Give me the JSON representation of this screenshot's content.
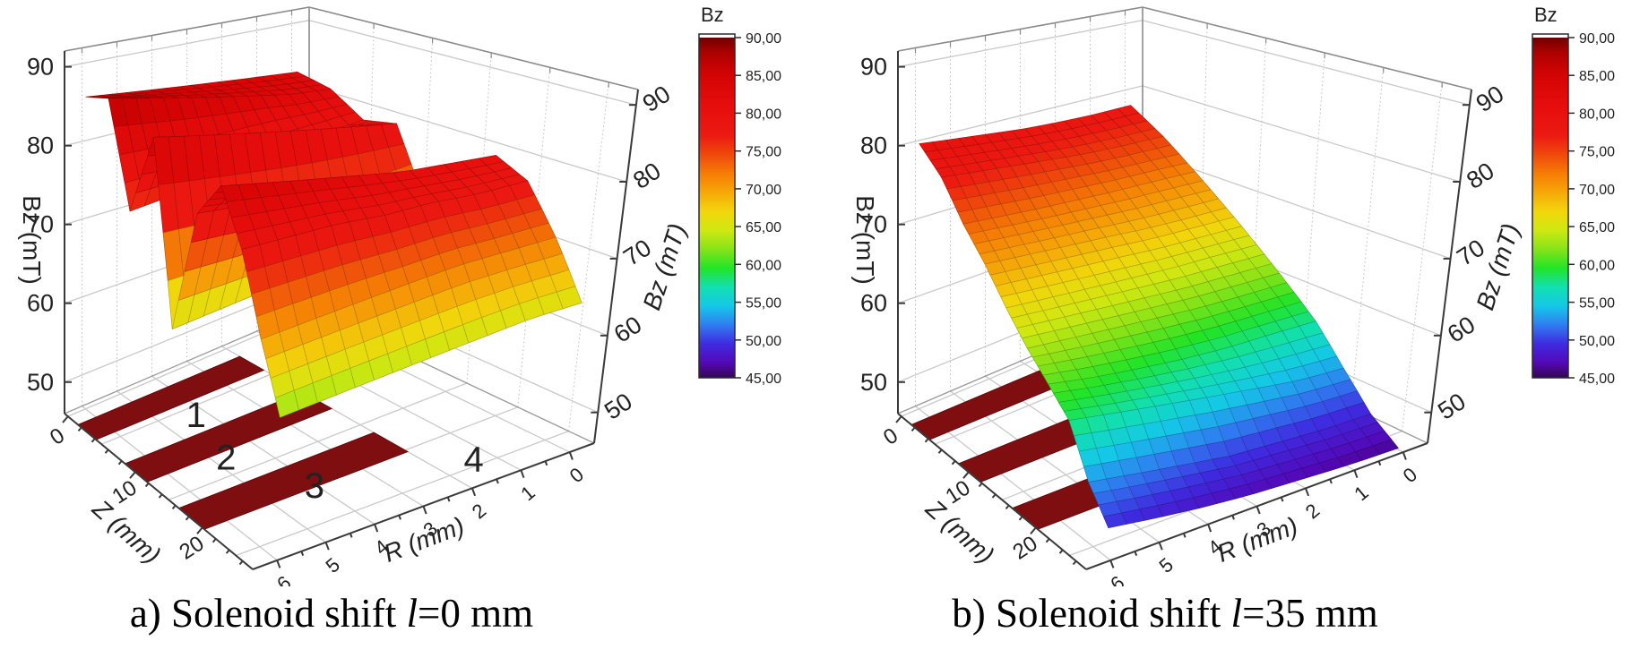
{
  "chart_data": [
    {
      "type": "surface",
      "panel": "a",
      "caption": {
        "prefix": "a) Solenoid shift ",
        "italic_var": "l",
        "suffix": "=0 mm"
      },
      "axes": {
        "z_label": "Z (mm)",
        "r_label": "R (mm)",
        "b_label_left": "Bz (mT)",
        "b_label_right": "Bz (mT)",
        "z_ticks": [
          0,
          10,
          20
        ],
        "r_ticks": [
          0,
          1,
          2,
          3,
          4,
          5,
          6
        ],
        "b_ticks": [
          50,
          60,
          70,
          80,
          90
        ],
        "z_range": [
          -0.5,
          27.5
        ],
        "r_range": [
          -0.5,
          6.5
        ],
        "b_range": [
          46,
          92
        ]
      },
      "colorbar": {
        "title": "Bz",
        "tick_labels": [
          "90,00",
          "85,00",
          "80,00",
          "75,00",
          "70,00",
          "65,00",
          "60,00",
          "55,00",
          "50,00",
          "45,00"
        ],
        "values": [
          90,
          85,
          80,
          75,
          70,
          65,
          60,
          55,
          50,
          45
        ]
      },
      "surface_grid": {
        "z": [
          0,
          3,
          6,
          9,
          12,
          15,
          18,
          21,
          24,
          27
        ],
        "r": [
          0,
          1,
          2,
          3,
          4,
          5,
          6
        ],
        "bz_values_by_r": [
          [
            83.0,
            82.0,
            79.0,
            80.0,
            70.0,
            77.0,
            80.0,
            78.0,
            72.0,
            65.0
          ],
          [
            83.5,
            82.5,
            78.5,
            81.0,
            68.0,
            77.5,
            80.5,
            78.0,
            72.0,
            65.0
          ],
          [
            84.0,
            83.5,
            78.0,
            82.0,
            66.5,
            78.0,
            81.0,
            78.5,
            72.0,
            64.5
          ],
          [
            84.5,
            84.5,
            77.0,
            83.0,
            65.5,
            78.5,
            82.0,
            78.5,
            71.5,
            64.0
          ],
          [
            85.0,
            85.5,
            76.0,
            84.0,
            65.0,
            79.0,
            83.0,
            79.0,
            71.0,
            63.5
          ],
          [
            85.5,
            86.5,
            75.5,
            85.0,
            64.5,
            79.5,
            84.0,
            79.0,
            70.5,
            63.0
          ],
          [
            86.0,
            87.5,
            75.0,
            86.0,
            64.0,
            80.0,
            85.0,
            79.0,
            70.0,
            62.5
          ]
        ]
      },
      "coil_bars": [
        {
          "z": [
            1.5,
            4.2
          ],
          "r": [
            2.0,
            6.5
          ]
        },
        {
          "z": [
            8.5,
            11.8
          ],
          "r": [
            2.0,
            6.5
          ]
        },
        {
          "z": [
            16.5,
            20.3
          ],
          "r": [
            2.0,
            6.5
          ]
        }
      ],
      "floor_labels": [
        {
          "text": "1",
          "z": 6.5,
          "r": 4.3
        },
        {
          "text": "2",
          "z": 13.0,
          "r": 4.8
        },
        {
          "text": "3",
          "z": 20.5,
          "r": 4.1
        },
        {
          "text": "4",
          "z": 24.5,
          "r": 1.4
        }
      ]
    },
    {
      "type": "surface",
      "panel": "b",
      "caption": {
        "prefix": "b) Solenoid shift ",
        "italic_var": "l",
        "suffix": "=35 mm"
      },
      "axes": {
        "z_label": "Z (mm)",
        "r_label": "R (mm)",
        "b_label_left": "Bz (mT)",
        "b_label_right": "Bz (mT)",
        "z_ticks": [
          0,
          10,
          20
        ],
        "r_ticks": [
          0,
          1,
          2,
          3,
          4,
          5,
          6
        ],
        "b_ticks": [
          50,
          60,
          70,
          80,
          90
        ],
        "z_range": [
          -0.5,
          27.5
        ],
        "r_range": [
          -0.5,
          6.5
        ],
        "b_range": [
          46,
          92
        ]
      },
      "colorbar": {
        "title": "Bz",
        "tick_labels": [
          "90,00",
          "85,00",
          "80,00",
          "75,00",
          "70,00",
          "65,00",
          "60,00",
          "55,00",
          "50,00",
          "45,00"
        ],
        "values": [
          90,
          85,
          80,
          75,
          70,
          65,
          60,
          55,
          50,
          45
        ]
      },
      "surface_grid": {
        "z": [
          0,
          3,
          6,
          9,
          12,
          15,
          18,
          21,
          24,
          27
        ],
        "r": [
          0,
          1,
          2,
          3,
          4,
          5,
          6
        ],
        "bz_values_by_r": [
          [
            78.0,
            75.0,
            71.5,
            68.0,
            64.5,
            61.0,
            57.5,
            53.0,
            48.8,
            46.2
          ],
          [
            78.0,
            75.2,
            71.8,
            68.2,
            64.8,
            61.2,
            57.8,
            53.5,
            49.0,
            46.4
          ],
          [
            78.2,
            75.5,
            72.0,
            68.5,
            65.0,
            61.5,
            58.0,
            54.5,
            49.5,
            46.8
          ],
          [
            78.5,
            76.0,
            72.3,
            69.0,
            65.4,
            62.0,
            58.5,
            55.5,
            50.0,
            47.2
          ],
          [
            79.0,
            76.5,
            72.6,
            69.4,
            65.8,
            62.5,
            59.2,
            56.5,
            51.0,
            47.8
          ],
          [
            79.5,
            77.0,
            73.0,
            69.8,
            66.2,
            63.0,
            60.0,
            57.5,
            52.0,
            48.6
          ],
          [
            80.0,
            77.5,
            73.4,
            70.2,
            66.6,
            63.5,
            61.0,
            58.5,
            53.0,
            49.5
          ]
        ]
      },
      "coil_bars": [
        {
          "z": [
            1.5,
            4.2
          ],
          "r": [
            2.0,
            6.5
          ]
        },
        {
          "z": [
            8.5,
            11.8
          ],
          "r": [
            2.0,
            6.5
          ]
        },
        {
          "z": [
            16.5,
            20.3
          ],
          "r": [
            2.0,
            6.5
          ]
        }
      ],
      "floor_labels": []
    }
  ],
  "colormap": {
    "range": [
      45,
      90
    ],
    "stops": [
      [
        45,
        "#350750"
      ],
      [
        47,
        "#5408b8"
      ],
      [
        49.5,
        "#3f2be0"
      ],
      [
        52,
        "#2f7df0"
      ],
      [
        54.5,
        "#15c8e8"
      ],
      [
        57,
        "#12e0b0"
      ],
      [
        59.5,
        "#22e428"
      ],
      [
        62,
        "#86e318"
      ],
      [
        64.5,
        "#cfe812"
      ],
      [
        67,
        "#f2d60c"
      ],
      [
        69.5,
        "#f6a808"
      ],
      [
        72,
        "#f57d05"
      ],
      [
        74.5,
        "#ef4a0c"
      ],
      [
        77,
        "#ec1a12"
      ],
      [
        81,
        "#e60d0d"
      ],
      [
        85,
        "#d40404"
      ],
      [
        88,
        "#ad0101"
      ],
      [
        90,
        "#700000"
      ]
    ],
    "coil_bar_color": "#7e0e10",
    "bar_over_color": "#ffffff"
  }
}
